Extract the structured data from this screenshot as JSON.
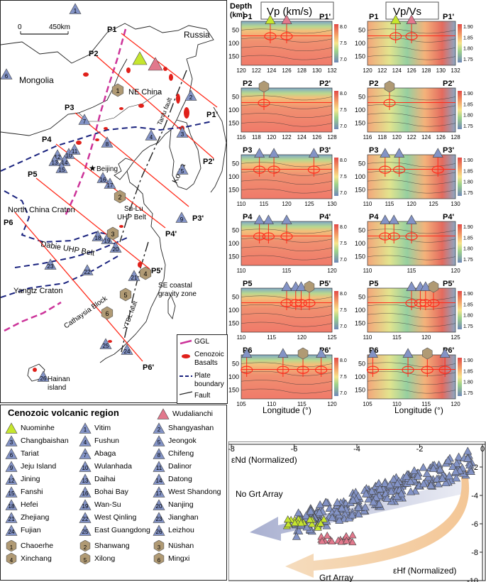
{
  "map": {
    "labels": {
      "russia": "Russia",
      "mongolia": "Mongolia",
      "ne_china": "NE China",
      "beijing": "Beijing",
      "korea": "Korea",
      "ncc": "North China Craton",
      "sulu": "Su-Lu",
      "sulu2": "UHP Belt",
      "dabie": "Dabie UHP Belt",
      "yangtze": "Yangtz Craton",
      "cathaysia": "Cathaysia Block",
      "secoast": "SE coastal",
      "secoast2": "gravity zone",
      "hainan": "Hainan",
      "hainan2": "island",
      "tanlu": "Tanlu fault",
      "ytdl": "YTDL fault",
      "scale": "450km",
      "scale0": "0"
    },
    "profiles": [
      {
        "start": "P1",
        "end": "P1'"
      },
      {
        "start": "P2",
        "end": "P2'"
      },
      {
        "start": "P3",
        "end": "P3'"
      },
      {
        "start": "P4",
        "end": "P4'"
      },
      {
        "start": "P5",
        "end": "P5'"
      },
      {
        "start": "P6",
        "end": "P6'"
      }
    ],
    "legend": {
      "ggl": "GGL",
      "basalts": "Cenozoic",
      "basalts2": "Basalts",
      "plate": "Plate",
      "plate2": "boundary",
      "fault": "Fault"
    }
  },
  "legend": {
    "title": "Cenozoic volcanic region",
    "wudalianchi": "Wudalianchi",
    "nuominhe": "Nuominhe",
    "triangles": [
      "Vitim",
      "Shangyashan",
      "Changbaishan",
      "Fushun",
      "Jeongok",
      "Tariat",
      "Abaga",
      "Chifeng",
      "Jeju Island",
      "Wulanhada",
      "Dalinor",
      "Jining",
      "Daihai",
      "Datong",
      "Fanshi",
      "Bohai Bay",
      "West Shandong",
      "Hefei",
      "Wan-Su",
      "Nanjing",
      "Zhejiang",
      "West Qinling",
      "Jianghan",
      "Fujian",
      "East Guangdong",
      "Leizhou"
    ],
    "hexagons": [
      "Chaoerhe",
      "Shanwang",
      "Nüshan",
      "Xinchang",
      "Xilong",
      "Mingxi"
    ]
  },
  "sections": {
    "depth_label": "Depth",
    "depth_unit": "(km)",
    "vp_title": "Vp (km/s)",
    "vpvs_title": "Vp/Vs",
    "xlabel": "Longitude (°)",
    "depth_ticks": [
      "50",
      "100",
      "150"
    ],
    "colorbar_vp": [
      "8.0",
      "7.5",
      "7.0"
    ],
    "colorbar_vpvs": [
      "1.90",
      "1.85",
      "1.80",
      "1.75"
    ],
    "rows": [
      {
        "left": "P1",
        "right": "P1'",
        "lon_ticks": [
          "120",
          "122",
          "124",
          "126",
          "128",
          "130",
          "132"
        ]
      },
      {
        "left": "P2",
        "right": "P2'",
        "lon_ticks": [
          "116",
          "118",
          "120",
          "122",
          "124",
          "126",
          "128"
        ]
      },
      {
        "left": "P3",
        "right": "P3'",
        "lon_ticks": [
          "110",
          "115",
          "120",
          "125",
          "130"
        ]
      },
      {
        "left": "P4",
        "right": "P4'",
        "lon_ticks": [
          "110",
          "115",
          "120"
        ]
      },
      {
        "left": "P5",
        "right": "P5'",
        "lon_ticks": [
          "110",
          "115",
          "120",
          "125"
        ]
      },
      {
        "left": "P6",
        "right": "P6'",
        "lon_ticks": [
          "105",
          "110",
          "115",
          "120"
        ]
      }
    ]
  },
  "scatter": {
    "xlabel": "εNd (Normalized)",
    "ylabel": "εHf (Normalized)",
    "no_grt": "No Grt Array",
    "grt": "Grt Array",
    "x_ticks": [
      "-8",
      "-6",
      "-4",
      "-2",
      "0"
    ],
    "y_ticks": [
      "-2",
      "-4",
      "-6",
      "-8",
      "-10"
    ]
  },
  "colors": {
    "vp_hot": "#e8605a",
    "vp_cold": "#7c92b8",
    "triangle": "#8393c6",
    "wuda": "#e2788c",
    "nuomin": "#c6e62e",
    "hex": "#b09a74",
    "ggl": "#cc3399",
    "basalt": "#e0201a",
    "plate": "#1a237e",
    "profile": "#ff2a1a"
  }
}
